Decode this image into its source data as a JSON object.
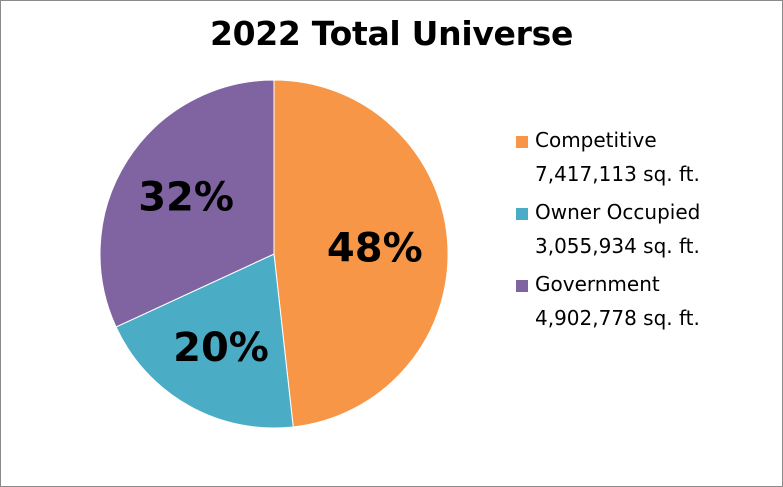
{
  "chart_data": {
    "type": "pie",
    "title": "2022 Total Universe",
    "slices": [
      {
        "label": "Competitive",
        "value": 7417113,
        "value_text": "7,417,113 sq. ft.",
        "percent_text": "48%",
        "color": "#F79646"
      },
      {
        "label": "Owner Occupied",
        "value": 3055934,
        "value_text": "3,055,934 sq. ft.",
        "percent_text": "20%",
        "color": "#4BACC6"
      },
      {
        "label": "Government",
        "value": 4902778,
        "value_text": "4,902,778 sq. ft.",
        "percent_text": "32%",
        "color": "#8064A2"
      }
    ],
    "start_angle": "12 o'clock",
    "direction": "clockwise",
    "legend_position": "right"
  }
}
